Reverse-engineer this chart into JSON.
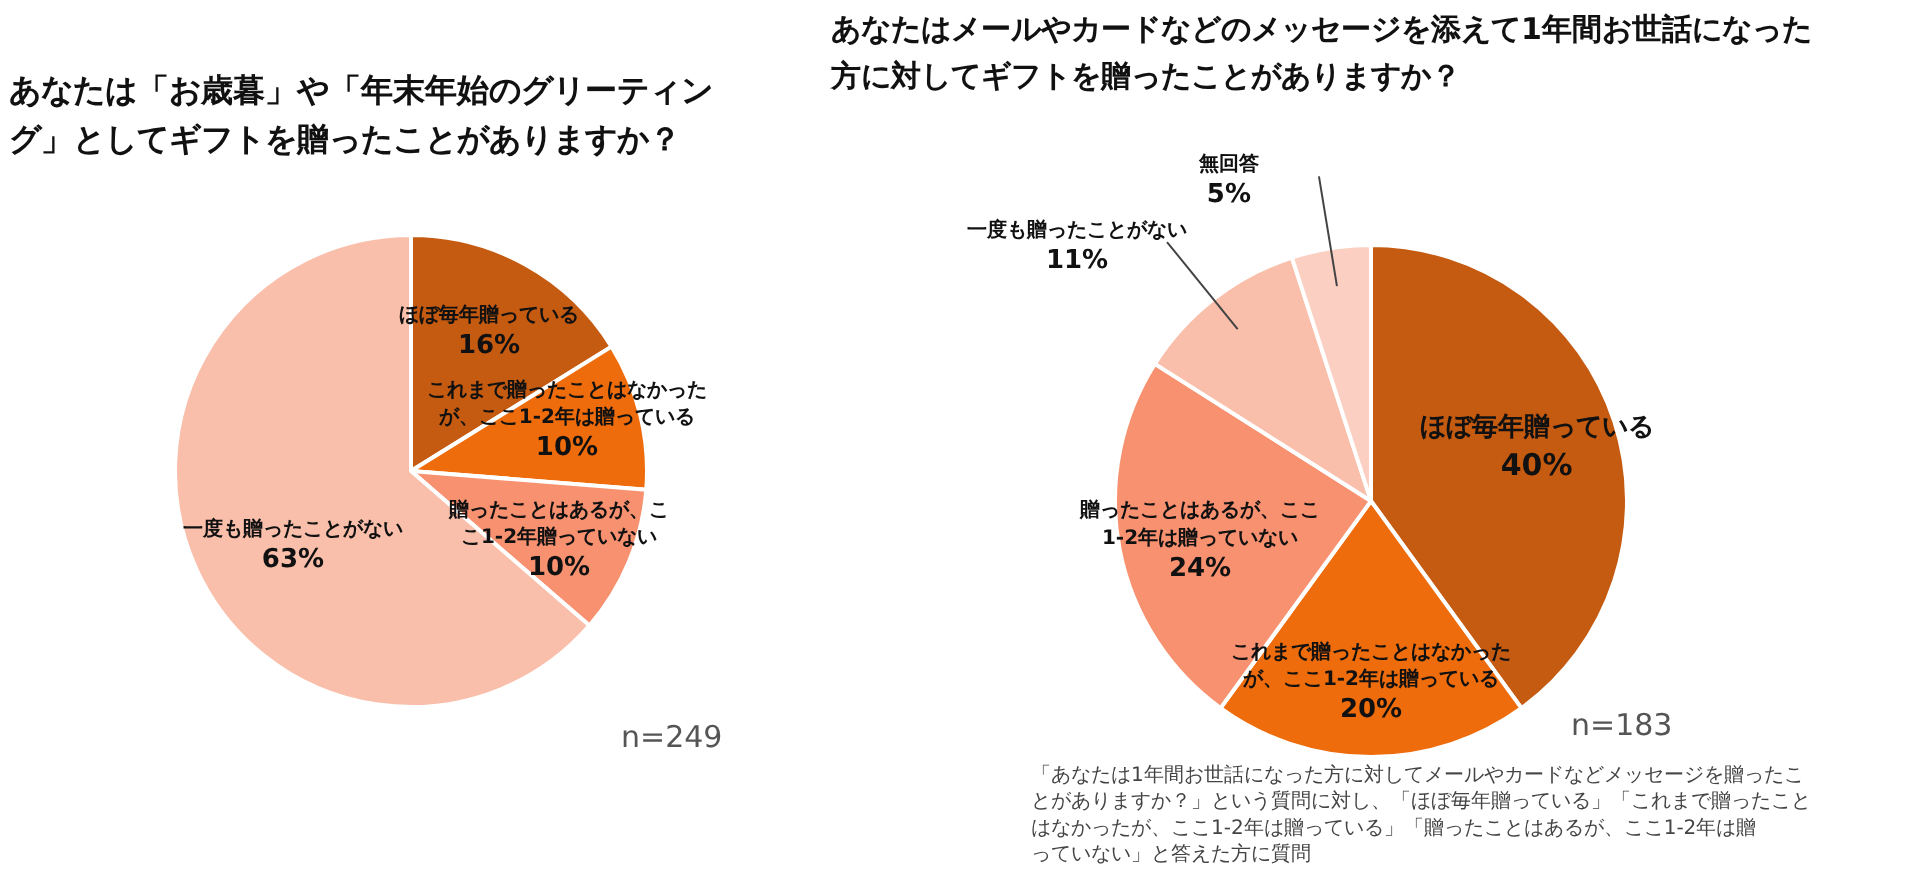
{
  "chart_data": [
    {
      "type": "pie",
      "title": "あなたは「お歳暮」や「年末年始のグリーティング」としてギフトを贈ったことがありますか？",
      "categories": [
        "ほぼ毎年贈っている",
        "これまで贈ったことはなかったが、ここ1-2年は贈っている",
        "贈ったことはあるが、ここ1-2年贈っていない",
        "一度も贈ったことがない"
      ],
      "values": [
        16,
        10,
        10,
        63
      ],
      "colors": [
        "#c55a11",
        "#ee6c0c",
        "#f79170",
        "#f9bfab"
      ],
      "value_labels": [
        "16%",
        "10%",
        "10%",
        "63%"
      ],
      "annotations": [
        "n=249"
      ]
    },
    {
      "type": "pie",
      "title": "あなたはメールやカードなどのメッセージを添えて1年間お世話になった方に対してギフトを贈ったことがありますか？",
      "categories": [
        "ほぼ毎年贈っている",
        "これまで贈ったことはなかったが、ここ1-2年は贈っている",
        "贈ったことはあるが、ここ1-2年は贈っていない",
        "一度も贈ったことがない",
        "無回答"
      ],
      "values": [
        40,
        20,
        24,
        11,
        5
      ],
      "colors": [
        "#c55a11",
        "#ee6c0c",
        "#f79170",
        "#f9bfab",
        "#fbd0c2"
      ],
      "value_labels": [
        "40%",
        "20%",
        "24%",
        "11%",
        "5%"
      ],
      "annotations": [
        "n=183",
        "「あなたは1年間お世話になった方に対してメールやカードなどメッセージを贈ったことがありますか？」という質問に対し、「ほぼ毎年贈っている」「これまで贈ったことはなかったが、ここ1-2年は贈っている」「贈ったことはあるが、ここ1-2年は贈っていない」と答えた方に質問"
      ]
    }
  ]
}
